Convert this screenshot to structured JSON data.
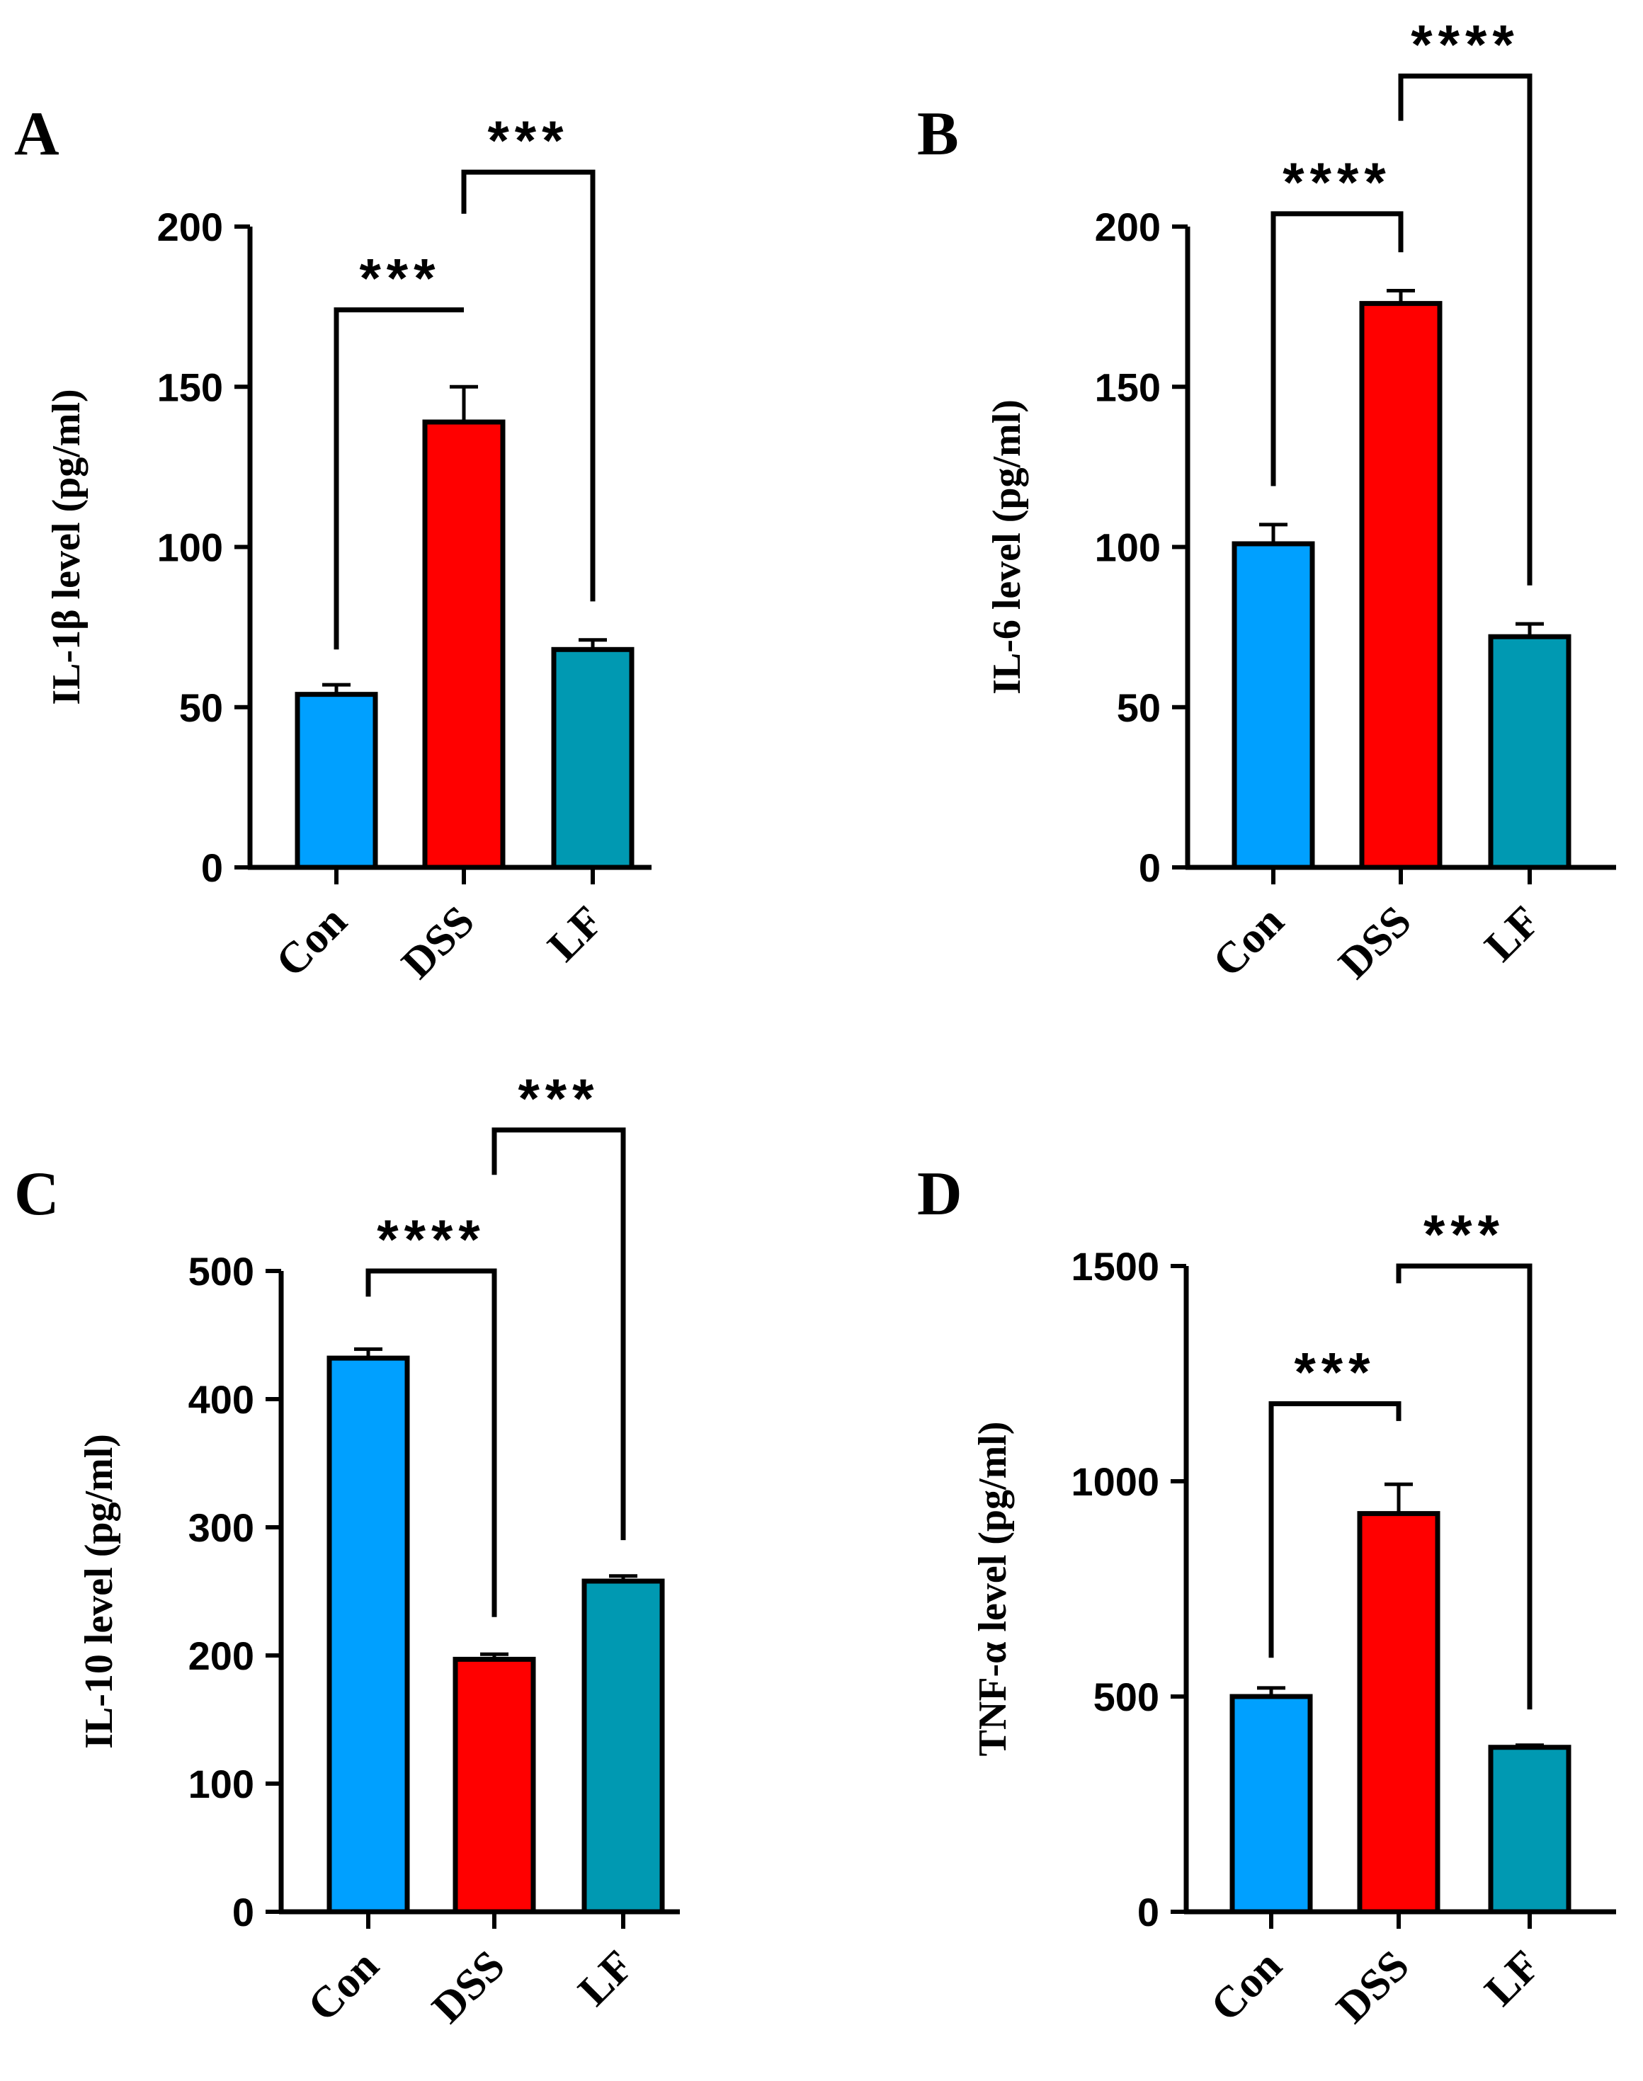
{
  "chart_data": [
    {
      "type": "bar",
      "panel": "A",
      "categories": [
        "Con",
        "DSS",
        "LF"
      ],
      "values": [
        54,
        139,
        68
      ],
      "errors": [
        3,
        11,
        3
      ],
      "colors": [
        "#00a0ff",
        "#ff0000",
        "#0099b2"
      ],
      "ylabel": "IL-1β level (pg/ml)",
      "ylim": [
        0,
        200
      ],
      "yticks": [
        0,
        50,
        100,
        150,
        200
      ],
      "significance": [
        {
          "from": 0,
          "to": 1,
          "label": "***",
          "bracket": 174,
          "tickFrom": 68,
          "tickTo": 174
        },
        {
          "from": 1,
          "to": 2,
          "label": "***",
          "bracket": 217,
          "tickFrom": 204,
          "tickTo": 83
        }
      ]
    },
    {
      "type": "bar",
      "panel": "B",
      "categories": [
        "Con",
        "DSS",
        "LF"
      ],
      "values": [
        101,
        176,
        72
      ],
      "errors": [
        6,
        4,
        4
      ],
      "colors": [
        "#00a0ff",
        "#ff0000",
        "#0099b2"
      ],
      "ylabel": "IL-6 level (pg/ml)",
      "ylim": [
        0,
        200
      ],
      "yticks": [
        0,
        50,
        100,
        150,
        200
      ],
      "significance": [
        {
          "from": 0,
          "to": 1,
          "label": "****",
          "bracket": 204,
          "tickFrom": 119,
          "tickTo": 192
        },
        {
          "from": 1,
          "to": 2,
          "label": "****",
          "bracket": 247,
          "tickFrom": 233,
          "tickTo": 88
        }
      ]
    },
    {
      "type": "bar",
      "panel": "C",
      "categories": [
        "Con",
        "DSS",
        "LF"
      ],
      "values": [
        432,
        197,
        258
      ],
      "errors": [
        7,
        4,
        4
      ],
      "colors": [
        "#00a0ff",
        "#ff0000",
        "#0099b2"
      ],
      "ylabel": "IL-10 level (pg/ml)",
      "ylim": [
        0,
        500
      ],
      "yticks": [
        0,
        100,
        200,
        300,
        400,
        500
      ],
      "significance": [
        {
          "from": 0,
          "to": 1,
          "label": "****",
          "bracket": 500,
          "tickFrom": 480,
          "tickTo": 230
        },
        {
          "from": 1,
          "to": 2,
          "label": "***",
          "bracket": 610,
          "tickFrom": 575,
          "tickTo": 290
        }
      ]
    },
    {
      "type": "bar",
      "panel": "D",
      "categories": [
        "Con",
        "DSS",
        "LF"
      ],
      "values": [
        500,
        925,
        382
      ],
      "errors": [
        20,
        68,
        5
      ],
      "colors": [
        "#00a0ff",
        "#ff0000",
        "#0099b2"
      ],
      "ylabel": "TNF-α level (pg/ml)",
      "ylim": [
        0,
        1500
      ],
      "yticks": [
        0,
        500,
        1000,
        1500
      ],
      "significance": [
        {
          "from": 0,
          "to": 1,
          "label": "***",
          "bracket": 1180,
          "tickFrom": 590,
          "tickTo": 1140
        },
        {
          "from": 1,
          "to": 2,
          "label": "***",
          "bracket": 1500,
          "tickFrom": 1460,
          "tickTo": 470
        }
      ]
    }
  ]
}
